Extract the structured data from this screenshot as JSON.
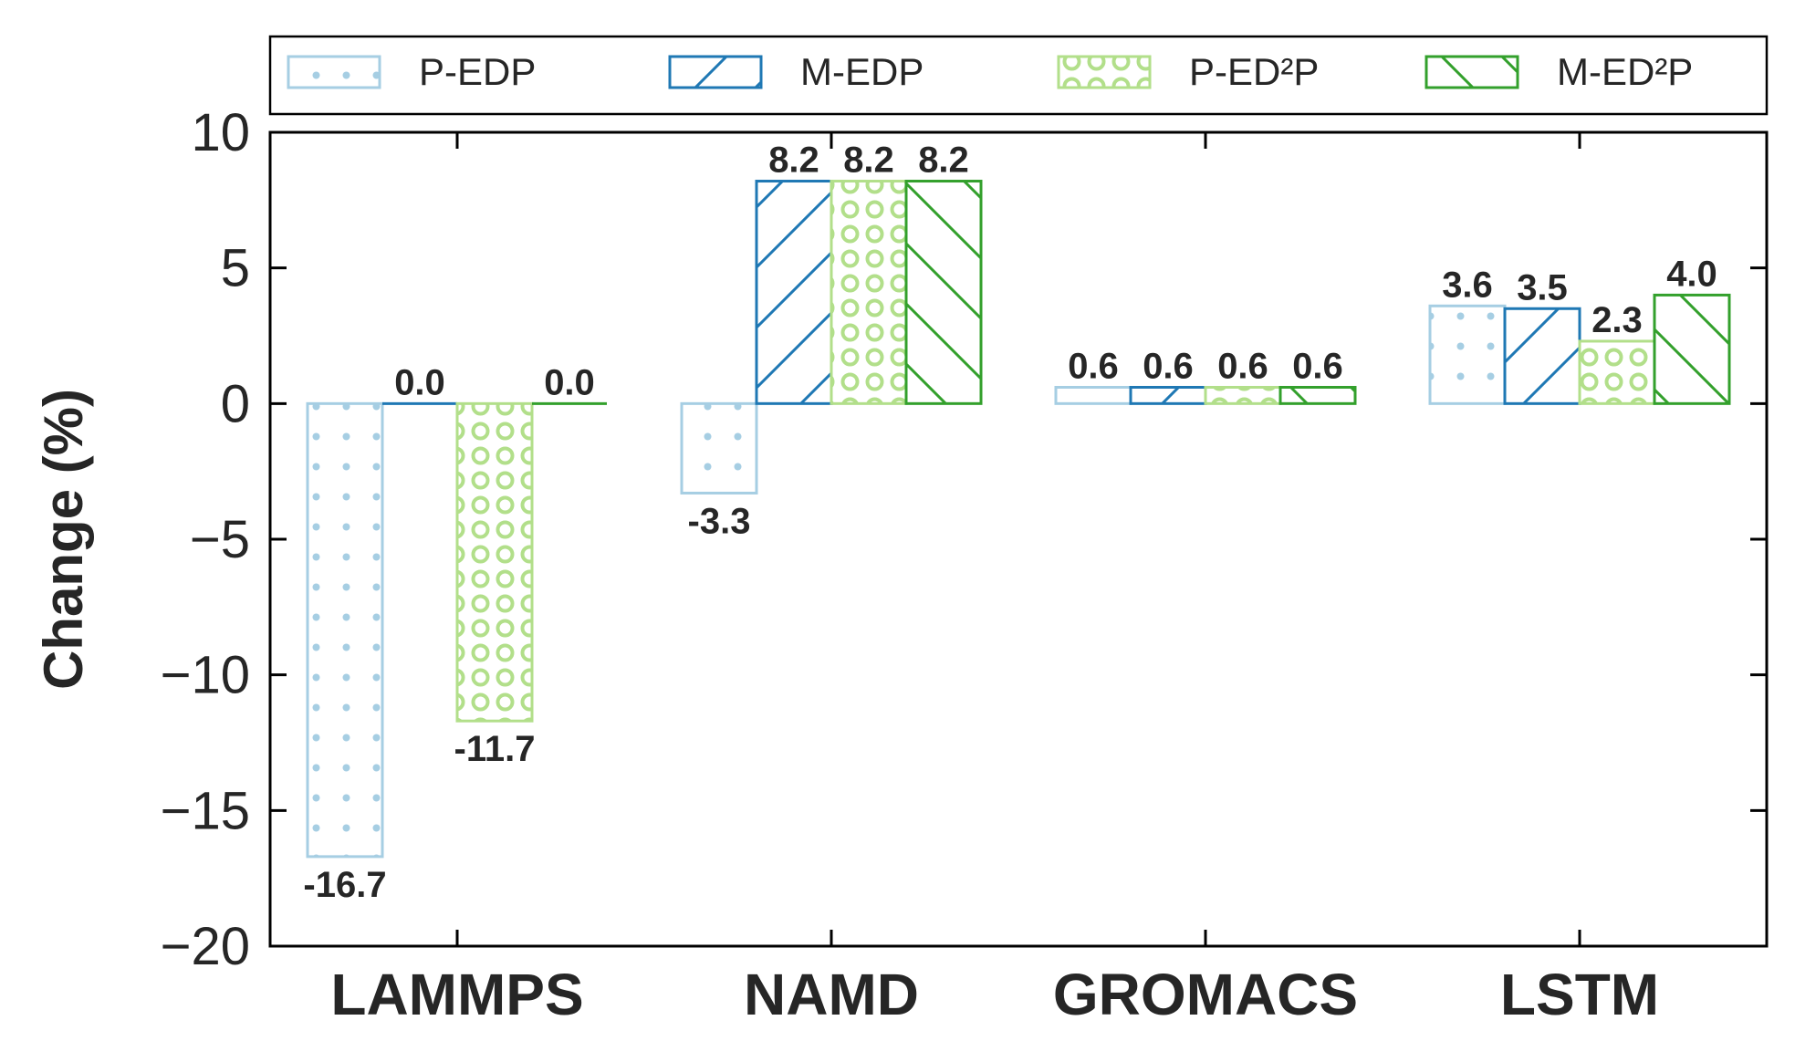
{
  "chart_data": {
    "type": "bar",
    "title": "",
    "xlabel": "",
    "ylabel": "Change (%)",
    "ylim": [
      -20,
      10
    ],
    "yticks": [
      {
        "value": 10,
        "label": "10"
      },
      {
        "value": 5,
        "label": "5"
      },
      {
        "value": 0,
        "label": "0"
      },
      {
        "value": -5,
        "label": "−5"
      },
      {
        "value": -10,
        "label": "−10"
      },
      {
        "value": -15,
        "label": "−15"
      },
      {
        "value": -20,
        "label": "−20"
      }
    ],
    "categories": [
      "LAMMPS",
      "NAMD",
      "GROMACS",
      "LSTM"
    ],
    "grid": false,
    "legend_position": "top",
    "series": [
      {
        "name": "P-EDP",
        "color": "#a6cee3",
        "pattern": "dots",
        "values": [
          -16.7,
          -3.3,
          0.6,
          3.6
        ],
        "labels": [
          "-16.7",
          "-3.3",
          "0.6",
          "3.6"
        ]
      },
      {
        "name": "M-EDP",
        "color": "#1f78b4",
        "pattern": "forward-hatch",
        "values": [
          0.0,
          8.2,
          0.6,
          3.5
        ],
        "labels": [
          "0.0",
          "8.2",
          "0.6",
          "3.5"
        ]
      },
      {
        "name": "P-ED²P",
        "color": "#b2df8a",
        "pattern": "circles",
        "values": [
          -11.7,
          8.2,
          0.6,
          2.3
        ],
        "labels": [
          "-11.7",
          "8.2",
          "0.6",
          "2.3"
        ]
      },
      {
        "name": "M-ED²P",
        "color": "#33a02c",
        "pattern": "back-hatch",
        "values": [
          0.0,
          8.2,
          0.6,
          4.0
        ],
        "labels": [
          "0.0",
          "8.2",
          "0.6",
          "4.0"
        ]
      }
    ]
  }
}
